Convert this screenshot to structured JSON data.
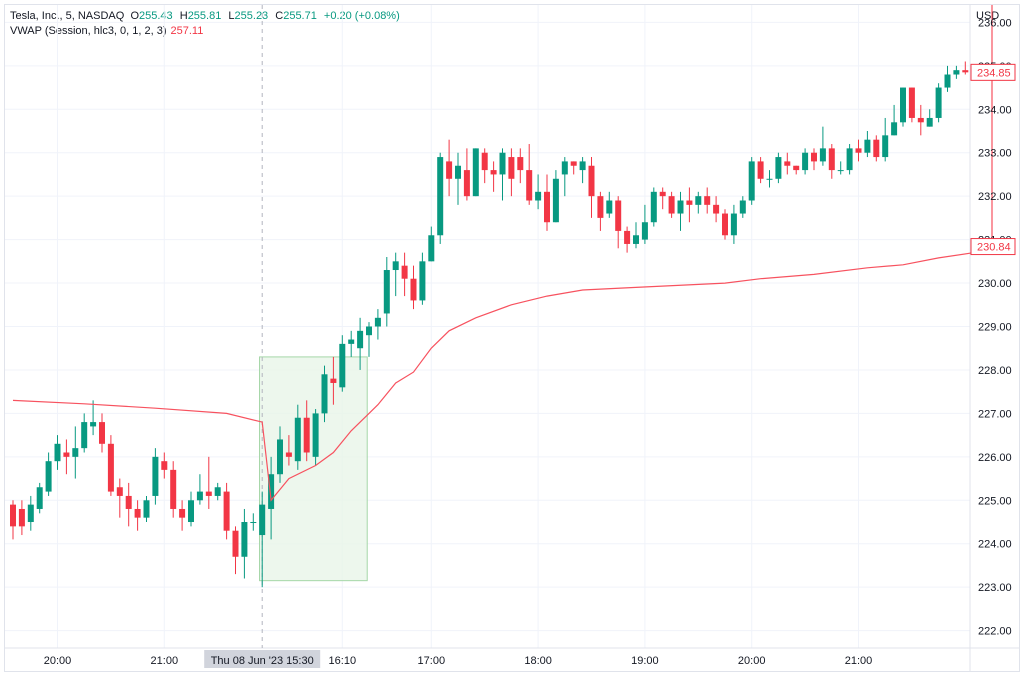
{
  "header": {
    "symbol": "Tesla, Inc., 5, NASDAQ",
    "o_key": "O",
    "o_val": "255.43",
    "h_key": "H",
    "h_val": "255.81",
    "l_key": "L",
    "l_val": "255.23",
    "c_key": "C",
    "c_val": "255.71",
    "change": "+0.20 (+0.08%)",
    "vwap_label": "VWAP (Session, hlc3, 0, 1, 2, 3)",
    "vwap_value": "257.11",
    "currency": "USD"
  },
  "colors": {
    "up": "#089981",
    "down": "#f23645",
    "vwap": "#f7525f",
    "selection": "#e8f5e9"
  },
  "chart_data": {
    "type": "candlestick",
    "ylim": [
      221.6,
      236.4
    ],
    "y_ticks": [
      "222.00",
      "223.00",
      "224.00",
      "225.00",
      "226.00",
      "227.00",
      "228.00",
      "229.00",
      "230.00",
      "231.00",
      "232.00",
      "233.00",
      "234.00",
      "235.00",
      "236.00"
    ],
    "x_ticks": [
      {
        "label": "20:00",
        "i": 5
      },
      {
        "label": "21:00",
        "i": 17
      },
      {
        "label": "16:10",
        "i": 37
      },
      {
        "label": "17:00",
        "i": 47
      },
      {
        "label": "18:00",
        "i": 59
      },
      {
        "label": "19:00",
        "i": 71
      },
      {
        "label": "20:00",
        "i": 83
      },
      {
        "label": "21:00",
        "i": 95
      }
    ],
    "crosshair_label": "Thu 08 Jun '23   15:30",
    "crosshair_i": 28,
    "selection_range": {
      "i_start": 27.7,
      "i_end": 39.8,
      "y_low": 223.15,
      "y_high": 228.3
    },
    "price_labels": [
      {
        "value": "234.85",
        "y": 234.85
      },
      {
        "value": "230.84",
        "y": 230.84
      }
    ],
    "candles": [
      [
        224.9,
        224.4,
        225.0,
        224.1
      ],
      [
        224.8,
        224.4,
        225.0,
        224.2
      ],
      [
        224.5,
        224.9,
        225.1,
        224.3
      ],
      [
        224.8,
        225.3,
        225.4,
        224.7
      ],
      [
        225.2,
        225.9,
        226.1,
        225.1
      ],
      [
        225.9,
        226.3,
        226.5,
        225.7
      ],
      [
        226.1,
        226.0,
        226.4,
        225.6
      ],
      [
        226.0,
        226.2,
        226.7,
        225.5
      ],
      [
        226.2,
        226.8,
        227.0,
        226.1
      ],
      [
        226.7,
        226.8,
        227.3,
        226.5
      ],
      [
        226.8,
        226.3,
        227.0,
        226.1
      ],
      [
        226.3,
        225.2,
        226.5,
        225.1
      ],
      [
        225.3,
        225.1,
        225.5,
        224.6
      ],
      [
        225.1,
        224.8,
        225.4,
        224.4
      ],
      [
        224.8,
        224.6,
        225.0,
        224.3
      ],
      [
        224.6,
        225.0,
        225.1,
        224.5
      ],
      [
        225.1,
        226.0,
        226.2,
        224.9
      ],
      [
        225.9,
        225.7,
        226.1,
        225.5
      ],
      [
        225.7,
        224.8,
        225.9,
        224.6
      ],
      [
        224.8,
        224.6,
        225.0,
        224.3
      ],
      [
        224.5,
        225.0,
        225.2,
        224.4
      ],
      [
        225.0,
        225.2,
        225.6,
        224.9
      ],
      [
        225.2,
        225.1,
        226.0,
        224.8
      ],
      [
        225.1,
        225.3,
        225.4,
        225.0
      ],
      [
        225.2,
        224.3,
        225.4,
        224.1
      ],
      [
        224.3,
        223.7,
        224.4,
        223.3
      ],
      [
        223.7,
        224.5,
        224.8,
        223.2
      ],
      [
        224.5,
        224.5,
        224.7,
        224.3
      ],
      [
        224.2,
        224.9,
        225.2,
        223.0
      ],
      [
        224.8,
        225.6,
        226.0,
        224.1
      ],
      [
        225.6,
        226.4,
        226.7,
        225.4
      ],
      [
        226.1,
        226.0,
        226.5,
        225.8
      ],
      [
        225.9,
        226.9,
        227.2,
        225.7
      ],
      [
        226.9,
        226.1,
        227.3,
        225.9
      ],
      [
        226.0,
        227.0,
        227.1,
        225.8
      ],
      [
        227.0,
        227.9,
        228.1,
        226.8
      ],
      [
        227.8,
        227.7,
        228.3,
        227.2
      ],
      [
        227.6,
        228.6,
        228.8,
        227.5
      ],
      [
        228.6,
        228.7,
        228.9,
        228.3
      ],
      [
        228.5,
        228.9,
        229.2,
        228.0
      ],
      [
        228.8,
        229.0,
        229.1,
        228.3
      ],
      [
        229.0,
        229.2,
        229.4,
        228.7
      ],
      [
        229.3,
        230.3,
        230.6,
        229.0
      ],
      [
        230.3,
        230.5,
        230.7,
        229.7
      ],
      [
        230.4,
        230.1,
        230.7,
        229.7
      ],
      [
        230.1,
        229.6,
        230.4,
        229.4
      ],
      [
        229.6,
        230.5,
        230.7,
        229.5
      ],
      [
        230.5,
        231.1,
        231.3,
        230.5
      ],
      [
        231.1,
        232.9,
        233.0,
        230.9
      ],
      [
        232.8,
        232.4,
        233.3,
        232.0
      ],
      [
        232.4,
        232.7,
        233.0,
        231.8
      ],
      [
        232.6,
        232.0,
        233.1,
        231.9
      ],
      [
        232.0,
        233.1,
        233.1,
        232.0
      ],
      [
        233.0,
        232.6,
        233.1,
        232.3
      ],
      [
        232.6,
        232.5,
        232.8,
        232.1
      ],
      [
        232.5,
        233.0,
        233.1,
        231.9
      ],
      [
        232.9,
        232.4,
        233.1,
        232.0
      ],
      [
        232.9,
        232.6,
        233.1,
        232.3
      ],
      [
        232.6,
        231.9,
        233.2,
        231.8
      ],
      [
        231.9,
        232.1,
        232.5,
        231.7
      ],
      [
        232.1,
        231.4,
        232.5,
        231.2
      ],
      [
        231.4,
        232.4,
        232.6,
        231.4
      ],
      [
        232.5,
        232.8,
        232.9,
        232.0
      ],
      [
        232.8,
        232.7,
        232.8,
        232.5
      ],
      [
        232.6,
        232.8,
        232.9,
        232.3
      ],
      [
        232.7,
        232.0,
        232.9,
        231.5
      ],
      [
        232.0,
        231.5,
        232.1,
        231.2
      ],
      [
        231.6,
        231.9,
        232.1,
        231.5
      ],
      [
        231.9,
        231.2,
        232.0,
        230.8
      ],
      [
        231.2,
        230.9,
        231.3,
        230.7
      ],
      [
        230.9,
        231.1,
        231.4,
        230.8
      ],
      [
        231.0,
        231.4,
        231.8,
        230.9
      ],
      [
        231.4,
        232.1,
        232.2,
        231.3
      ],
      [
        232.1,
        232.0,
        232.2,
        231.7
      ],
      [
        232.0,
        231.6,
        232.1,
        231.5
      ],
      [
        231.6,
        231.9,
        232.1,
        231.2
      ],
      [
        231.9,
        231.8,
        232.2,
        231.4
      ],
      [
        231.8,
        232.0,
        232.1,
        231.6
      ],
      [
        232.0,
        231.8,
        232.2,
        231.6
      ],
      [
        231.8,
        231.6,
        232.0,
        231.4
      ],
      [
        231.6,
        231.1,
        231.7,
        231.0
      ],
      [
        231.1,
        231.6,
        231.8,
        230.9
      ],
      [
        231.6,
        231.9,
        232.0,
        231.5
      ],
      [
        231.9,
        232.8,
        232.9,
        231.8
      ],
      [
        232.8,
        232.4,
        232.9,
        232.3
      ],
      [
        232.4,
        232.4,
        232.6,
        232.2
      ],
      [
        232.4,
        232.9,
        233.0,
        232.3
      ],
      [
        232.8,
        232.7,
        233.0,
        232.5
      ],
      [
        232.7,
        232.6,
        232.7,
        232.5
      ],
      [
        232.6,
        233.0,
        233.1,
        232.5
      ],
      [
        233.0,
        232.8,
        233.1,
        232.6
      ],
      [
        232.8,
        233.1,
        233.6,
        232.7
      ],
      [
        233.1,
        232.6,
        233.2,
        232.4
      ],
      [
        232.6,
        232.6,
        232.8,
        232.5
      ],
      [
        232.6,
        233.1,
        233.2,
        232.5
      ],
      [
        233.1,
        233.0,
        233.3,
        232.8
      ],
      [
        233.0,
        233.3,
        233.5,
        232.9
      ],
      [
        233.3,
        232.9,
        233.4,
        232.8
      ],
      [
        232.9,
        233.4,
        233.8,
        232.8
      ],
      [
        233.4,
        233.7,
        234.1,
        233.4
      ],
      [
        233.7,
        234.5,
        234.5,
        233.6
      ],
      [
        234.5,
        233.8,
        234.5,
        233.7
      ],
      [
        233.8,
        233.7,
        234.1,
        233.4
      ],
      [
        233.6,
        233.8,
        234.0,
        233.6
      ],
      [
        233.8,
        234.5,
        234.6,
        233.7
      ],
      [
        234.5,
        234.8,
        235.0,
        234.4
      ],
      [
        234.8,
        234.9,
        235.0,
        234.7
      ],
      [
        234.9,
        234.85,
        235.1,
        234.8
      ]
    ],
    "vwap": [
      [
        0,
        227.3
      ],
      [
        8,
        227.22
      ],
      [
        16,
        227.12
      ],
      [
        24,
        227.0
      ],
      [
        28,
        226.8
      ],
      [
        29,
        225.0
      ],
      [
        31,
        225.5
      ],
      [
        34,
        225.8
      ],
      [
        36,
        226.1
      ],
      [
        38,
        226.6
      ],
      [
        40,
        227.0
      ],
      [
        41,
        227.2
      ],
      [
        43,
        227.7
      ],
      [
        45,
        227.95
      ],
      [
        47,
        228.5
      ],
      [
        49,
        228.9
      ],
      [
        52,
        229.2
      ],
      [
        56,
        229.5
      ],
      [
        60,
        229.7
      ],
      [
        64,
        229.84
      ],
      [
        70,
        229.9
      ],
      [
        80,
        230.0
      ],
      [
        84,
        230.1
      ],
      [
        90,
        230.2
      ],
      [
        96,
        230.35
      ],
      [
        100,
        230.42
      ],
      [
        104,
        230.58
      ],
      [
        108,
        230.7
      ],
      [
        110,
        230.84
      ]
    ]
  }
}
